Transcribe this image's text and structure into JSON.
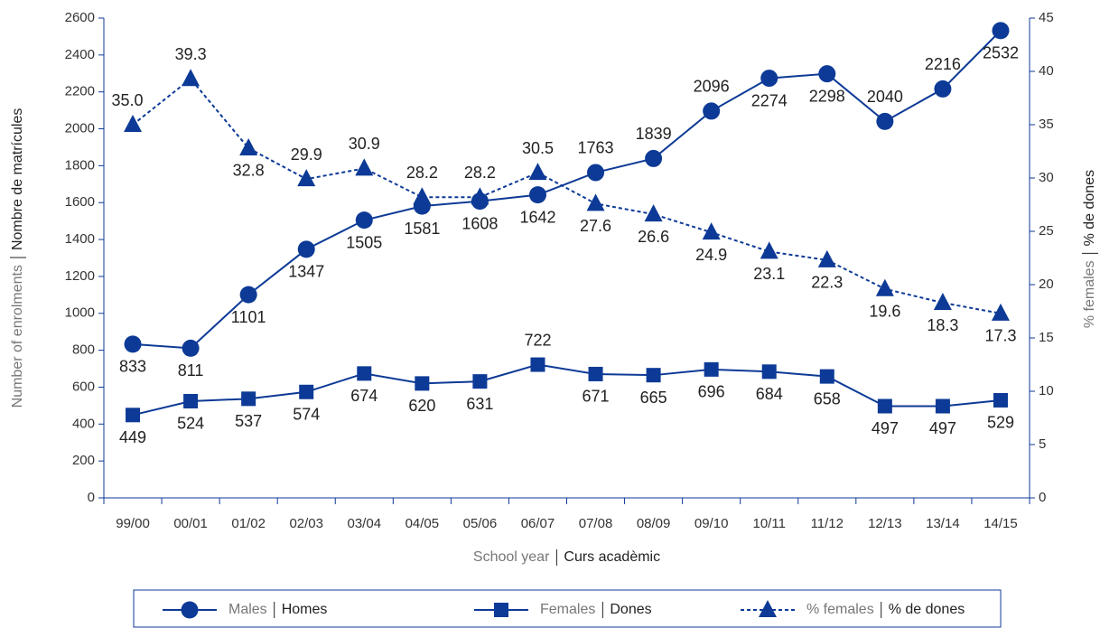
{
  "chart_data": {
    "type": "line",
    "categories": [
      "99/00",
      "00/01",
      "01/02",
      "02/03",
      "03/04",
      "04/05",
      "05/06",
      "06/07",
      "07/08",
      "08/09",
      "09/10",
      "10/11",
      "11/12",
      "12/13",
      "13/14",
      "14/15"
    ],
    "x_label": "School year",
    "x_label_ca": "Curs acadèmic",
    "y_label": "Number of enrolments",
    "y_label_ca": "Nombre de matrícules",
    "y2_label": "% females",
    "y2_label_ca": "% de dones",
    "ylim": [
      0,
      2600
    ],
    "yticks": [
      0,
      200,
      400,
      600,
      800,
      1000,
      1200,
      1400,
      1600,
      1800,
      2000,
      2200,
      2400,
      2600
    ],
    "y2lim": [
      0,
      45
    ],
    "y2ticks": [
      0,
      5,
      10,
      15,
      20,
      25,
      30,
      35,
      40,
      45
    ],
    "series": [
      {
        "name": "Males",
        "name_ca": "Homes",
        "color": "#0d3a96",
        "marker": "circle",
        "dash": "solid",
        "values": [
          833,
          811,
          1101,
          1347,
          1505,
          1581,
          1608,
          1642,
          1763,
          1839,
          2096,
          2274,
          2298,
          2040,
          2216,
          2532
        ]
      },
      {
        "name": "Females",
        "name_ca": "Dones",
        "color": "#0d3a96",
        "marker": "square",
        "dash": "solid",
        "values": [
          449,
          524,
          537,
          574,
          674,
          620,
          631,
          722,
          671,
          665,
          696,
          684,
          658,
          497,
          497,
          529
        ]
      },
      {
        "name": "% females",
        "name_ca": "% de dones",
        "color": "#0d3a96",
        "marker": "triangle",
        "dash": "dashed",
        "axis": "y2",
        "values": [
          35.0,
          39.3,
          32.8,
          29.9,
          30.9,
          28.2,
          28.2,
          30.5,
          27.6,
          26.6,
          24.9,
          23.1,
          22.3,
          19.6,
          18.3,
          17.3
        ],
        "value_labels": [
          "35.0",
          "39.3",
          "32.8",
          "29.9",
          "30.9",
          "28.2",
          "28.2",
          "30.5",
          "27.6",
          "26.6",
          "24.9",
          "23.1",
          "22.3",
          "19.6",
          "18.3",
          "17.3"
        ]
      }
    ]
  }
}
